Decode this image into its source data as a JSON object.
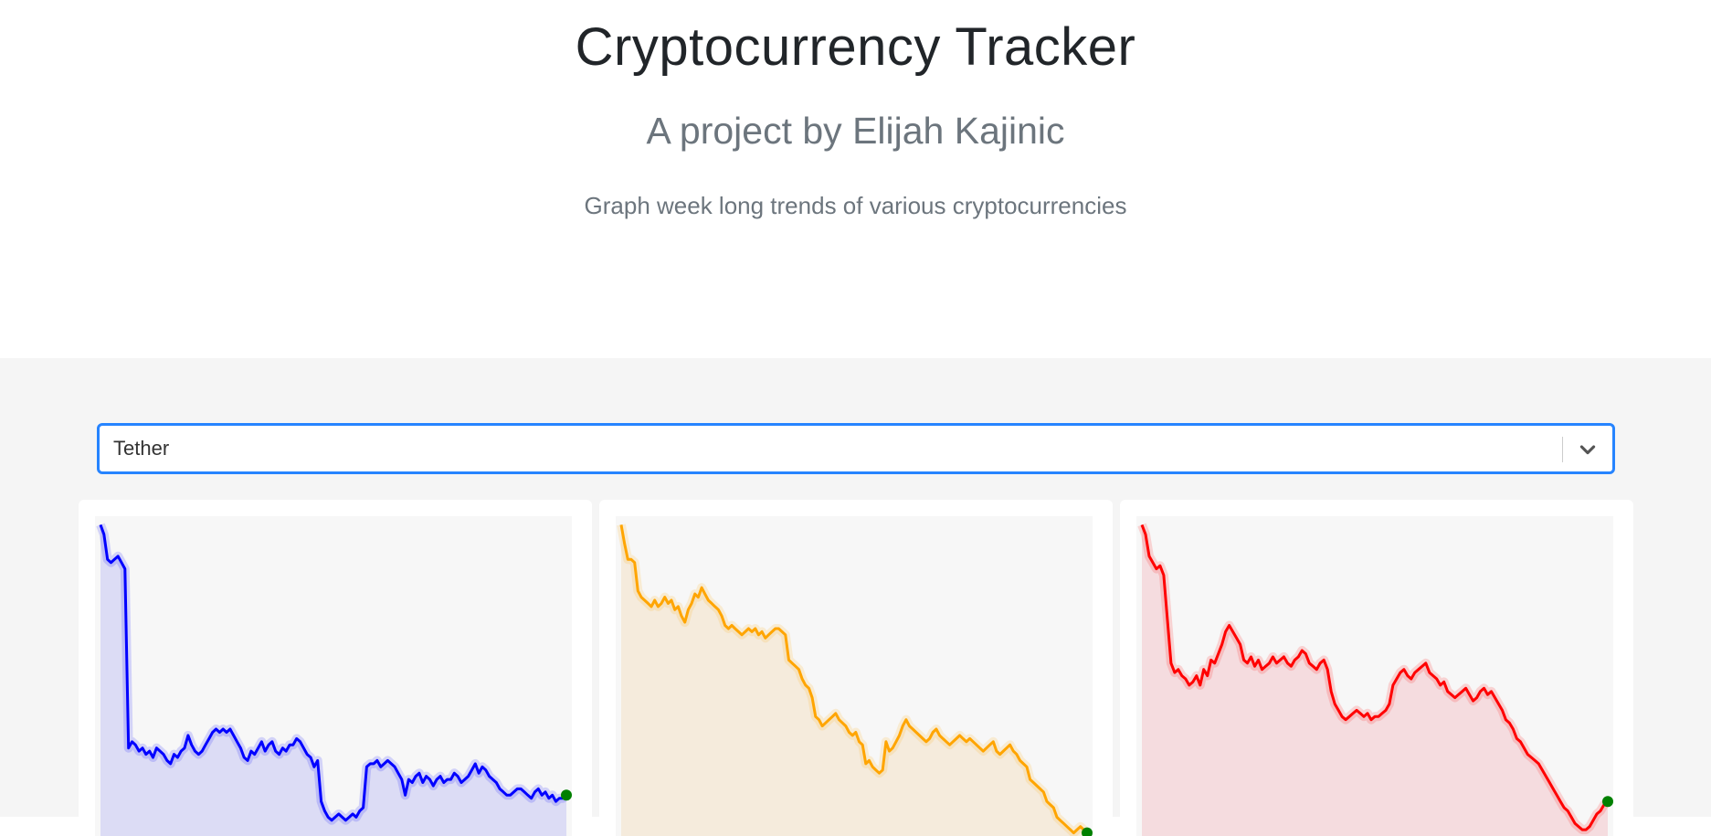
{
  "header": {
    "title": "Cryptocurrency Tracker",
    "subtitle": "A project by Elijah Kajinic",
    "tagline": "Graph week long trends of various cryptocurrencies"
  },
  "selector": {
    "value": "Tether",
    "border_color": "#2684ff",
    "icon": "chevron-down-icon"
  },
  "charts": [
    {
      "name": "",
      "line_color": "#0000ff",
      "fill_color": "#dcdcf5",
      "end_marker_color": "#008000",
      "chart_data": {
        "type": "area",
        "ylim": [
          0,
          100
        ],
        "values": [
          99,
          96,
          88,
          87,
          88,
          89,
          87,
          85,
          28,
          30,
          29,
          27,
          28,
          26,
          27,
          25,
          28,
          27,
          26,
          24,
          23,
          26,
          25,
          27,
          28,
          32,
          29,
          27,
          26,
          27,
          29,
          31,
          33,
          34,
          33,
          34,
          33,
          34,
          32,
          30,
          28,
          25,
          24,
          27,
          26,
          28,
          30,
          27,
          29,
          30,
          27,
          26,
          28,
          27,
          29,
          29,
          31,
          30,
          28,
          26,
          25,
          22,
          24,
          11,
          8,
          6,
          5,
          6,
          7,
          6,
          5,
          6,
          7,
          6,
          8,
          9,
          22,
          23,
          23,
          24,
          22,
          23,
          24,
          23,
          22,
          20,
          18,
          13,
          18,
          17,
          19,
          20,
          17,
          19,
          18,
          16,
          18,
          19,
          17,
          18,
          18,
          20,
          19,
          17,
          18,
          19,
          21,
          23,
          20,
          22,
          21,
          19,
          18,
          17,
          15,
          14,
          13,
          13,
          14,
          15,
          15,
          14,
          13,
          12,
          14,
          15,
          13,
          14,
          12,
          13,
          11,
          12,
          12,
          13
        ]
      }
    },
    {
      "name": "",
      "line_color": "#ffa500",
      "fill_color": "#f5ebdc",
      "end_marker_color": "#008000",
      "chart_data": {
        "type": "area",
        "ylim": [
          0,
          100
        ],
        "values": [
          99,
          93,
          88,
          88,
          87,
          78,
          76,
          75,
          74,
          73,
          75,
          73,
          74,
          76,
          74,
          75,
          72,
          73,
          70,
          68,
          72,
          74,
          77,
          76,
          79,
          77,
          75,
          74,
          73,
          72,
          70,
          67,
          66,
          67,
          66,
          65,
          64,
          65,
          66,
          65,
          66,
          64,
          65,
          63,
          64,
          65,
          66,
          66,
          65,
          64,
          56,
          55,
          54,
          53,
          50,
          48,
          47,
          44,
          38,
          37,
          35,
          36,
          37,
          38,
          39,
          37,
          36,
          35,
          33,
          32,
          33,
          30,
          29,
          23,
          24,
          22,
          21,
          20,
          21,
          30,
          27,
          28,
          30,
          32,
          35,
          37,
          35,
          34,
          33,
          32,
          31,
          30,
          31,
          33,
          34,
          32,
          31,
          30,
          29,
          30,
          31,
          32,
          31,
          30,
          31,
          30,
          29,
          28,
          27,
          28,
          29,
          30,
          27,
          26,
          27,
          28,
          29,
          27,
          26,
          24,
          23,
          22,
          18,
          17,
          16,
          15,
          14,
          11,
          10,
          9,
          6,
          5,
          4,
          3,
          2,
          1,
          2,
          3,
          2,
          1
        ]
      }
    },
    {
      "name": "",
      "line_color": "#ff0000",
      "fill_color": "#f5dcdf",
      "end_marker_color": "#008000",
      "chart_data": {
        "type": "area",
        "ylim": [
          0,
          100
        ],
        "values": [
          99,
          96,
          89,
          87,
          85,
          86,
          83,
          69,
          55,
          52,
          53,
          51,
          50,
          48,
          49,
          51,
          48,
          53,
          51,
          56,
          55,
          58,
          61,
          65,
          67,
          65,
          63,
          61,
          56,
          55,
          57,
          54,
          56,
          53,
          54,
          55,
          57,
          55,
          56,
          57,
          55,
          54,
          56,
          57,
          59,
          58,
          55,
          54,
          53,
          55,
          56,
          53,
          46,
          42,
          40,
          38,
          37,
          38,
          39,
          40,
          39,
          38,
          39,
          37,
          38,
          38,
          39,
          40,
          42,
          48,
          50,
          52,
          53,
          51,
          50,
          52,
          53,
          54,
          55,
          52,
          51,
          50,
          48,
          49,
          46,
          45,
          44,
          45,
          46,
          47,
          45,
          43,
          44,
          46,
          47,
          45,
          46,
          44,
          42,
          40,
          37,
          36,
          34,
          31,
          30,
          28,
          26,
          25,
          24,
          23,
          21,
          19,
          17,
          15,
          13,
          11,
          9,
          8,
          6,
          4,
          3,
          2,
          2,
          3,
          5,
          7,
          8,
          10,
          11
        ]
      }
    }
  ]
}
